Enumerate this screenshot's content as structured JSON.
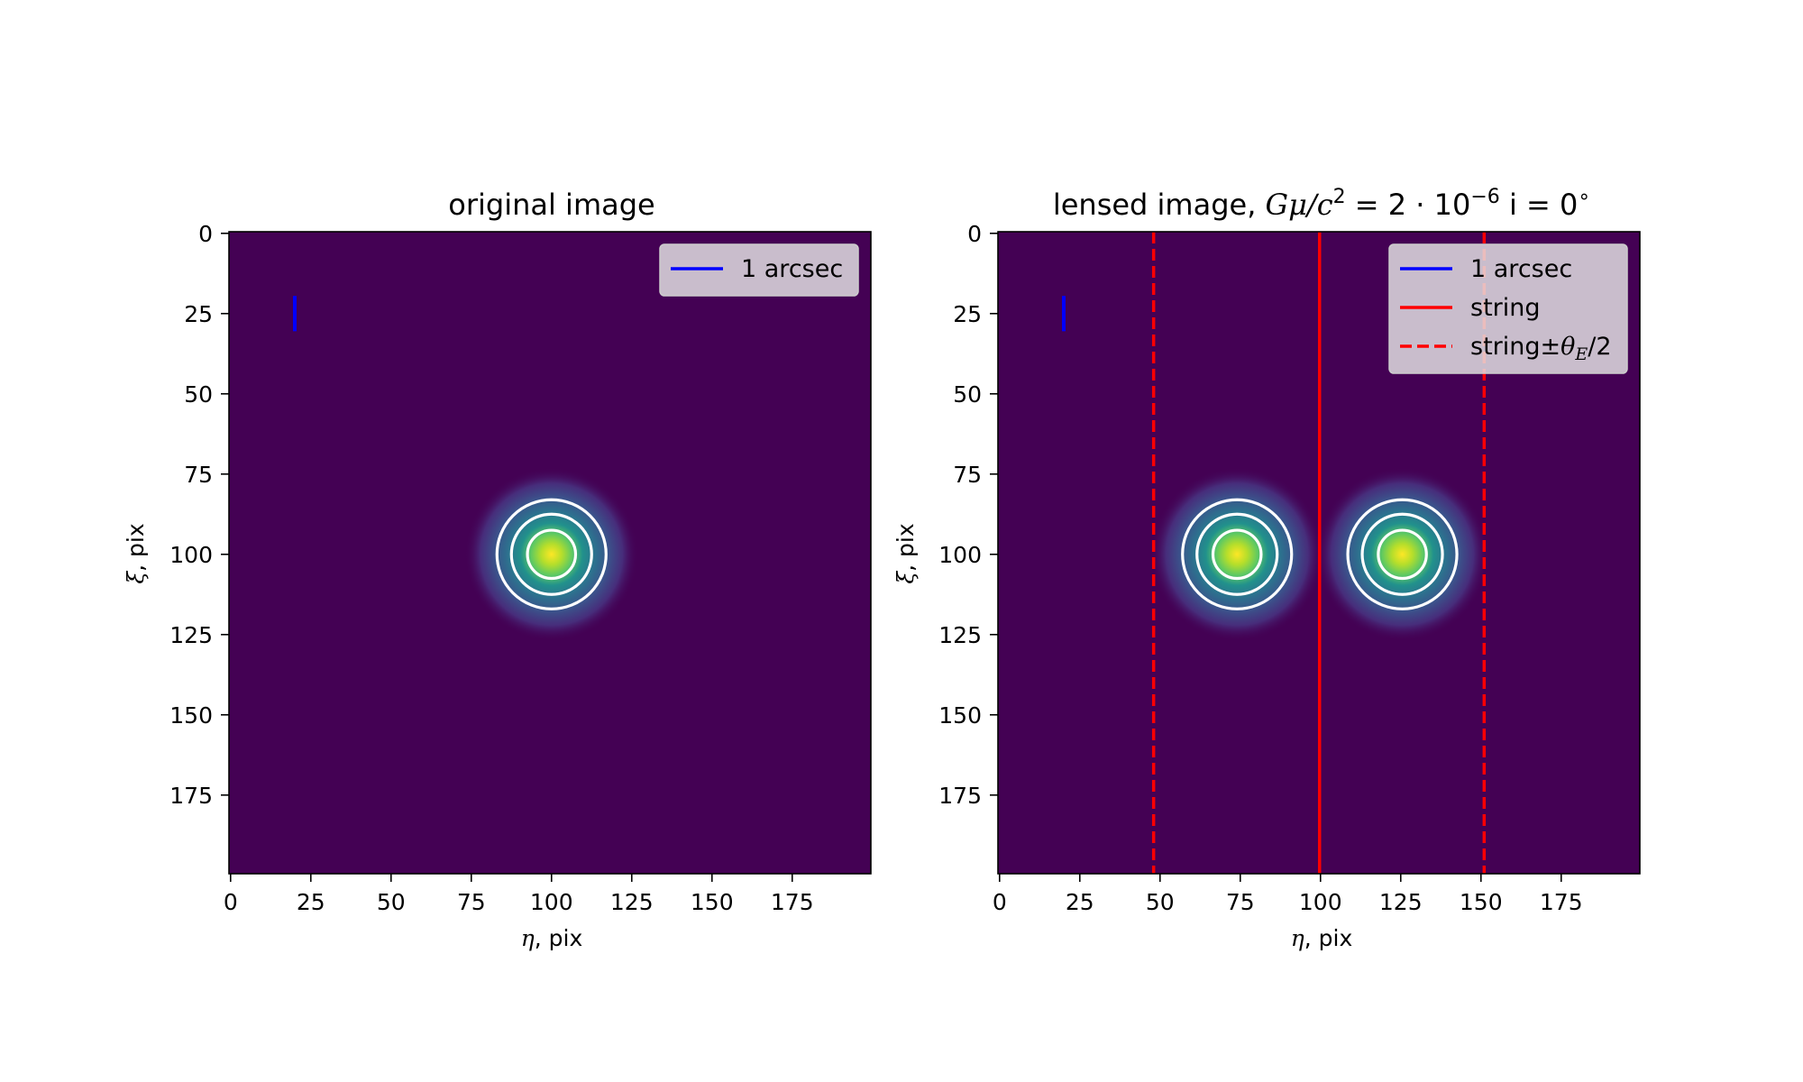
{
  "chart_data": [
    {
      "type": "heatmap",
      "title": "original image",
      "xlabel_symbol": "η",
      "xlabel_suffix": ", pix",
      "ylabel_symbol": "ξ",
      "ylabel_suffix": ", pix",
      "xlim": [
        -0.5,
        199.5
      ],
      "ylim": [
        199.5,
        -0.5
      ],
      "xticks": [
        0,
        25,
        50,
        75,
        100,
        125,
        150,
        175
      ],
      "yticks": [
        0,
        25,
        50,
        75,
        100,
        125,
        150,
        175
      ],
      "colormap": "viridis",
      "background_color": "#440154",
      "grid": false,
      "legend_position": "upper right",
      "sources": [
        {
          "eta": 100,
          "xi": 100
        }
      ],
      "contour_radii": [
        7.5,
        12.5,
        17
      ],
      "contour_color": "#ffffff",
      "scale_bar": {
        "label": "1 arcsec",
        "eta": 20,
        "xi_start": 19.5,
        "xi_end": 30.5,
        "color": "#0000ff"
      },
      "lines": []
    },
    {
      "type": "heatmap",
      "title_text": "lensed image, ",
      "title_math_base": "Gμ/c",
      "title_math_exp": "2",
      "title_value": " = 2 · 10",
      "title_value_exp": "−6",
      "title_tail": " i = 0",
      "title_degree": "∘",
      "xlabel_symbol": "η",
      "xlabel_suffix": ", pix",
      "ylabel_symbol": "ξ",
      "ylabel_suffix": ", pix",
      "xlim": [
        -0.5,
        199.5
      ],
      "ylim": [
        199.5,
        -0.5
      ],
      "xticks": [
        0,
        25,
        50,
        75,
        100,
        125,
        150,
        175
      ],
      "yticks": [
        0,
        25,
        50,
        75,
        100,
        125,
        150,
        175
      ],
      "colormap": "viridis",
      "background_color": "#440154",
      "grid": false,
      "legend_position": "upper right",
      "sources": [
        {
          "eta": 74,
          "xi": 100
        },
        {
          "eta": 125.5,
          "xi": 100
        }
      ],
      "contour_radii": [
        7.5,
        12.5,
        17
      ],
      "contour_color": "#ffffff",
      "scale_bar": {
        "label": "1 arcsec",
        "eta": 20,
        "xi_start": 19.5,
        "xi_end": 30.5,
        "color": "#0000ff"
      },
      "lines": [
        {
          "label": "string",
          "eta": 99.7,
          "style": "solid",
          "color": "#ff0000"
        },
        {
          "label_prefix": "string±",
          "label_symbol": "θ",
          "label_sub": "E",
          "label_suffix": "/2",
          "eta": 48,
          "style": "dashed",
          "color": "#ff0000"
        },
        {
          "eta": 151,
          "style": "dashed",
          "color": "#ff0000"
        }
      ]
    }
  ]
}
